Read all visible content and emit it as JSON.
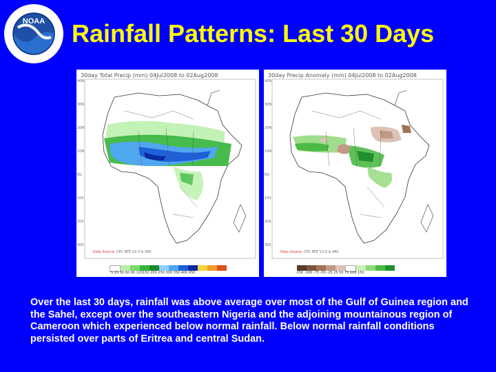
{
  "title": "Rainfall Patterns: Last 30 Days",
  "logo": {
    "center_text": "NOAA",
    "ring_text": "NATIONAL OCEANIC AND ATMOSPHERIC ADMINISTRATION · U.S. DEPARTMENT OF COMMERCE"
  },
  "maps": [
    {
      "title": "30day Total Precip (mm)   04Jul2008 to 02Aug2008",
      "source_prefix": "Data Source:",
      "source_rest": "CPC RFE V2.0 & ARC",
      "lat_ticks": [
        "40N",
        "35N",
        "30N",
        "25N",
        "20N",
        "15N",
        "10N",
        "5N",
        "EQ",
        "5S",
        "10S",
        "15S",
        "20S",
        "25S",
        "30S",
        "35S"
      ],
      "legend_colors": [
        "#ffffff",
        "#b7f0a8",
        "#7cd96b",
        "#33b43a",
        "#1a8a2b",
        "#8fd0ff",
        "#4fa7f0",
        "#1f60d8",
        "#0b2aa0",
        "#f7d23c",
        "#f09b28",
        "#d9531e"
      ],
      "legend_labels": "5 15 30 60 90 120150 200 250 300 350 400 450"
    },
    {
      "title": "30day Precip Anomaly (mm)  04Jul2008 to 02Aug2008",
      "source_prefix": "Data Source:",
      "source_rest": "CPC RFE V2.0 & ARC",
      "lat_ticks": [
        "40N",
        "35N",
        "30N",
        "25N",
        "20N",
        "15N",
        "10N",
        "5N",
        "EQ",
        "5S",
        "10S",
        "15S",
        "20S",
        "25S",
        "30S",
        "35S"
      ],
      "legend_colors": [
        "#5a3a2a",
        "#7d5440",
        "#a1725a",
        "#c19a85",
        "#dcc3b6",
        "#ffffff",
        "#c8f0b8",
        "#8fd87a",
        "#4cba45",
        "#1f8f2e"
      ],
      "legend_labels": "-150 -100 -75 -50 -25 25 50 75 100 150"
    }
  ],
  "caption": "Over the last 30 days, rainfall was above average over most of the Gulf of Guinea region and the Sahel, except over the southeastern Nigeria and the adjoining mountainous region of Cameroon which experienced below normal rainfall. Below normal rainfall conditions persisted over parts of Eritrea and central Sudan."
}
